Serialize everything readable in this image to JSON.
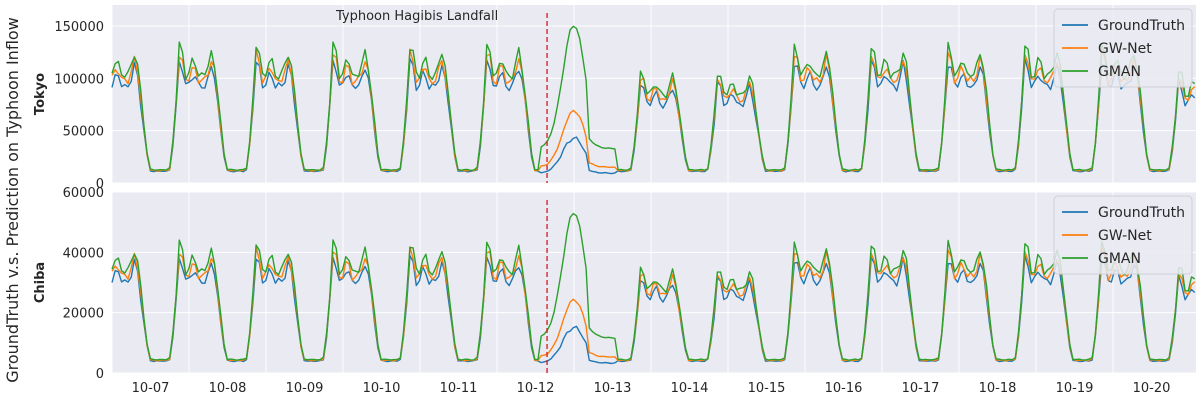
{
  "figure": {
    "ylabel": "GroundTruth v.s. Prediction on Typhoon Inflow",
    "annotation": "Typhoon Hagibis Landfall"
  },
  "chart_data": [
    {
      "type": "line",
      "panel": "Tokyo",
      "ylim": [
        0,
        170000
      ],
      "yticks": [
        0,
        50000,
        100000,
        150000
      ],
      "ytick_labels": [
        "0",
        "50000",
        "100000",
        "150000"
      ],
      "x_categories": [
        "10-07",
        "10-08",
        "10-09",
        "10-10",
        "10-11",
        "10-12",
        "10-13",
        "10-14",
        "10-15",
        "10-16",
        "10-17",
        "10-18",
        "10-19",
        "10-20"
      ],
      "grid": true,
      "legend": "top-right",
      "series": [
        {
          "name": "GroundTruth",
          "color": "#1f77b4"
        },
        {
          "name": "GW-Net",
          "color": "#ff7f0e"
        },
        {
          "name": "GMAN",
          "color": "#2ca02c"
        }
      ],
      "event_marker": {
        "x": "10-12",
        "fraction_of_day": 0.65,
        "color": "#d62728",
        "style": "dashed"
      }
    },
    {
      "type": "line",
      "panel": "Chiba",
      "ylim": [
        0,
        60000
      ],
      "yticks": [
        0,
        20000,
        40000,
        60000
      ],
      "ytick_labels": [
        "0",
        "20000",
        "40000",
        "60000"
      ],
      "x_categories": [
        "10-07",
        "10-08",
        "10-09",
        "10-10",
        "10-11",
        "10-12",
        "10-13",
        "10-14",
        "10-15",
        "10-16",
        "10-17",
        "10-18",
        "10-19",
        "10-20"
      ],
      "grid": true,
      "legend": "top-right",
      "series": [
        {
          "name": "GroundTruth",
          "color": "#1f77b4"
        },
        {
          "name": "GW-Net",
          "color": "#ff7f0e"
        },
        {
          "name": "GMAN",
          "color": "#2ca02c"
        }
      ],
      "event_marker": {
        "x": "10-12",
        "fraction_of_day": 0.65,
        "color": "#d62728",
        "style": "dashed"
      }
    }
  ]
}
